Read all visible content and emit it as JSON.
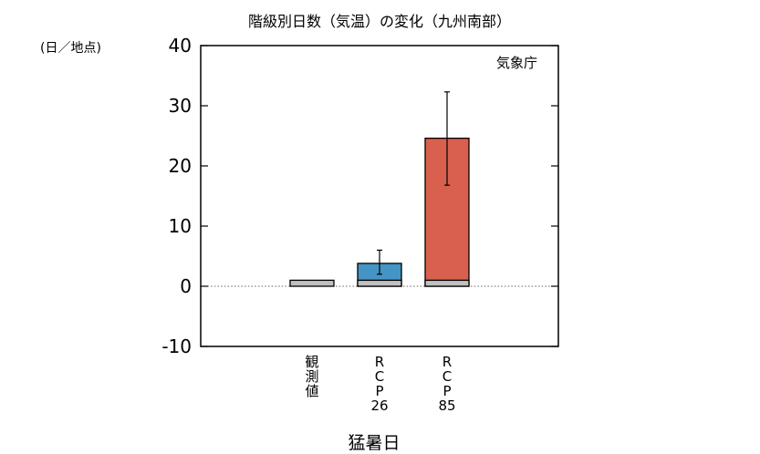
{
  "chart_data": {
    "type": "bar",
    "title": "階級別日数（気温）の変化（九州南部）",
    "y_unit_label": "(日／地点)",
    "source_label": "気象庁",
    "xlabel": "猛暑日",
    "ylim": [
      -10,
      40
    ],
    "y_ticks": [
      "40",
      "30",
      "20",
      "10",
      "0",
      "-10"
    ],
    "zero_line": "dotted",
    "categories": [
      {
        "label_lines": [
          "観",
          "測",
          "値"
        ],
        "color": "#c0c0c0",
        "observed_base": 1,
        "value": 1
      },
      {
        "label_lines": [
          "R",
          "C",
          "P",
          "26"
        ],
        "color": "#4495c6",
        "observed_base": 1,
        "value": 3.8,
        "error": [
          2.0,
          6.0
        ]
      },
      {
        "label_lines": [
          "R",
          "C",
          "P",
          "85"
        ],
        "color": "#d9604e",
        "observed_base": 1,
        "value": 24.6,
        "error": [
          16.8,
          32.3
        ]
      }
    ],
    "colors": {
      "observed": "#c0c0c0",
      "rcp26": "#4495c6",
      "rcp85": "#d9604e"
    }
  }
}
